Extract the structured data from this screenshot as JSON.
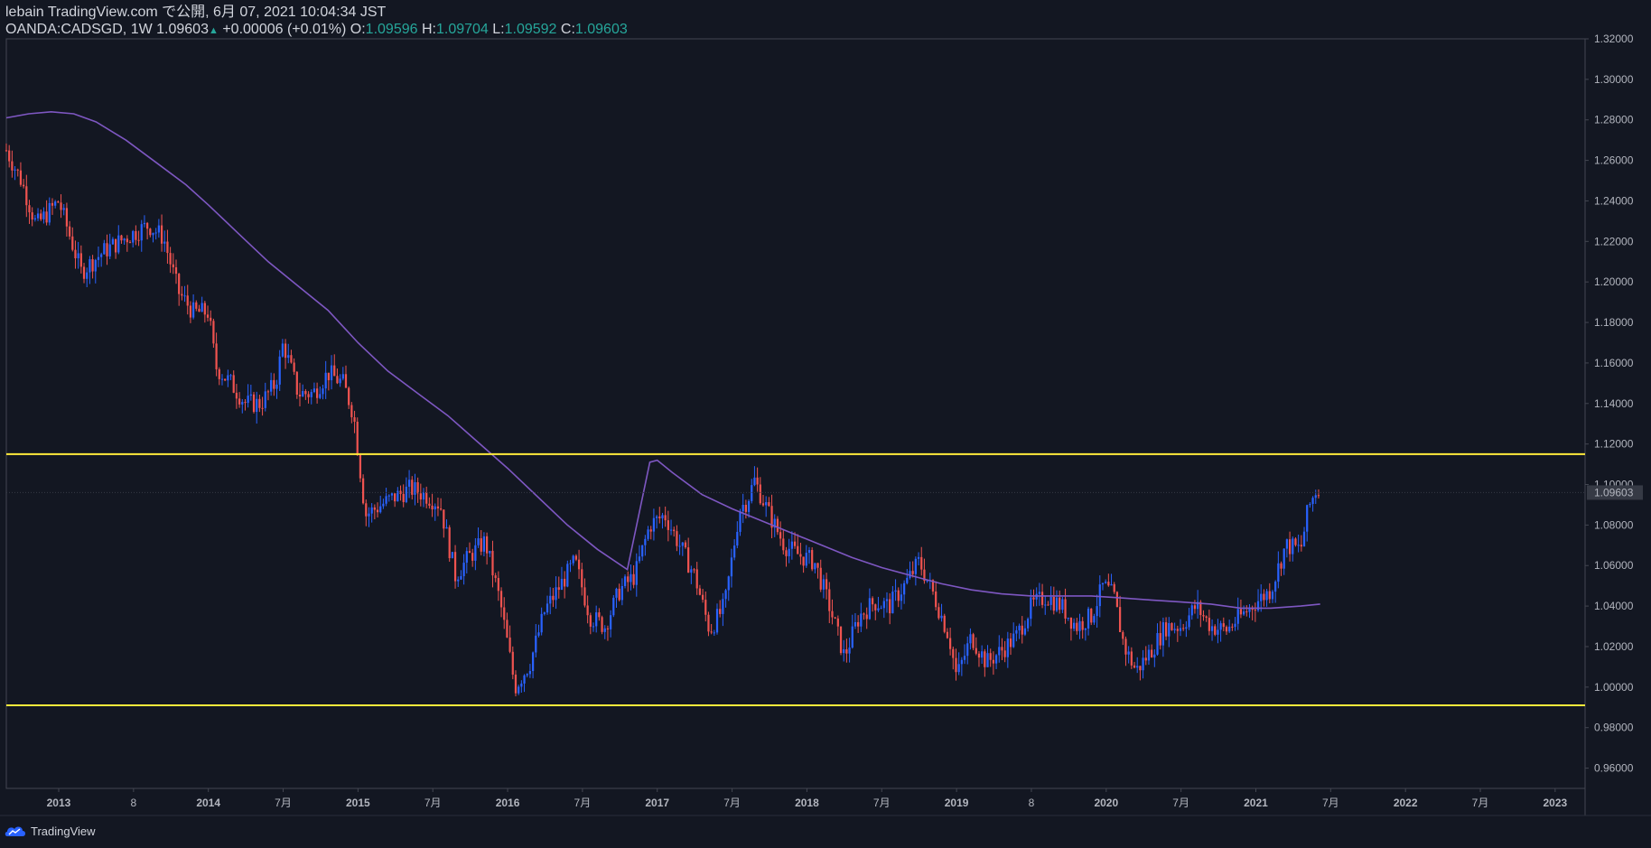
{
  "header": {
    "line1": "lebain TradingView.com で公開, 6月 07, 2021 10:04:34 JST",
    "symbol": "OANDA:CADSGD, 1W",
    "last": "1.09603",
    "change": "+0.00006 (+0.01%)",
    "o_label": "O:",
    "o_value": "1.09596",
    "h_label": "H:",
    "h_value": "1.09704",
    "l_label": "L:",
    "l_value": "1.09592",
    "c_label": "C:",
    "c_value": "1.09603"
  },
  "footer": {
    "brand": "TradingView",
    "logo_icon": "tradingview-cloud-icon"
  },
  "colors": {
    "background": "#131722",
    "up": "#2962ff",
    "down": "#ef5350",
    "ma": "#7e57c2",
    "level": "#ffeb3b",
    "axis": "#b2b5be"
  },
  "chart_data": {
    "type": "candlestick",
    "symbol": "OANDA:CADSGD",
    "interval": "1W",
    "ylim": [
      0.95,
      1.32
    ],
    "y_ticks": [
      "1.32000",
      "1.30000",
      "1.28000",
      "1.26000",
      "1.24000",
      "1.22000",
      "1.20000",
      "1.18000",
      "1.16000",
      "1.14000",
      "1.12000",
      "1.10000",
      "1.08000",
      "1.06000",
      "1.04000",
      "1.02000",
      "1.00000",
      "0.98000",
      "0.96000"
    ],
    "last_price_label": "1.09603",
    "x_ticks": [
      {
        "label": "2013",
        "t": 2013.0,
        "bold": true
      },
      {
        "label": "8",
        "t": 2013.5,
        "bold": false
      },
      {
        "label": "2014",
        "t": 2014.0,
        "bold": true
      },
      {
        "label": "7月",
        "t": 2014.5,
        "bold": false
      },
      {
        "label": "2015",
        "t": 2015.0,
        "bold": true
      },
      {
        "label": "7月",
        "t": 2015.5,
        "bold": false
      },
      {
        "label": "2016",
        "t": 2016.0,
        "bold": true
      },
      {
        "label": "7月",
        "t": 2016.5,
        "bold": false
      },
      {
        "label": "2017",
        "t": 2017.0,
        "bold": true
      },
      {
        "label": "7月",
        "t": 2017.5,
        "bold": false
      },
      {
        "label": "2018",
        "t": 2018.0,
        "bold": true
      },
      {
        "label": "7月",
        "t": 2018.5,
        "bold": false
      },
      {
        "label": "2019",
        "t": 2019.0,
        "bold": true
      },
      {
        "label": "8",
        "t": 2019.5,
        "bold": false
      },
      {
        "label": "2020",
        "t": 2020.0,
        "bold": true
      },
      {
        "label": "7月",
        "t": 2020.5,
        "bold": false
      },
      {
        "label": "2021",
        "t": 2021.0,
        "bold": true
      },
      {
        "label": "7月",
        "t": 2021.5,
        "bold": false
      },
      {
        "label": "2022",
        "t": 2022.0,
        "bold": true
      },
      {
        "label": "7月",
        "t": 2022.5,
        "bold": false
      },
      {
        "label": "2023",
        "t": 2023.0,
        "bold": true
      }
    ],
    "xlim": [
      2012.65,
      2023.2
    ],
    "horizontal_levels": [
      1.115,
      0.991
    ],
    "price_path": [
      [
        2012.65,
        1.265
      ],
      [
        2012.75,
        1.25
      ],
      [
        2012.85,
        1.228
      ],
      [
        2013.0,
        1.24
      ],
      [
        2013.15,
        1.205
      ],
      [
        2013.3,
        1.215
      ],
      [
        2013.45,
        1.222
      ],
      [
        2013.6,
        1.228
      ],
      [
        2013.7,
        1.222
      ],
      [
        2013.8,
        1.195
      ],
      [
        2013.9,
        1.185
      ],
      [
        2014.0,
        1.185
      ],
      [
        2014.05,
        1.158
      ],
      [
        2014.15,
        1.15
      ],
      [
        2014.25,
        1.14
      ],
      [
        2014.35,
        1.14
      ],
      [
        2014.45,
        1.15
      ],
      [
        2014.5,
        1.17
      ],
      [
        2014.6,
        1.145
      ],
      [
        2014.7,
        1.145
      ],
      [
        2014.8,
        1.155
      ],
      [
        2014.9,
        1.15
      ],
      [
        2014.97,
        1.135
      ],
      [
        2015.05,
        1.085
      ],
      [
        2015.2,
        1.092
      ],
      [
        2015.35,
        1.098
      ],
      [
        2015.45,
        1.095
      ],
      [
        2015.55,
        1.09
      ],
      [
        2015.65,
        1.055
      ],
      [
        2015.75,
        1.065
      ],
      [
        2015.85,
        1.072
      ],
      [
        2015.95,
        1.042
      ],
      [
        2016.05,
        1.0
      ],
      [
        2016.15,
        1.012
      ],
      [
        2016.25,
        1.038
      ],
      [
        2016.35,
        1.05
      ],
      [
        2016.45,
        1.062
      ],
      [
        2016.55,
        1.035
      ],
      [
        2016.65,
        1.03
      ],
      [
        2016.75,
        1.048
      ],
      [
        2016.85,
        1.055
      ],
      [
        2016.95,
        1.08
      ],
      [
        2017.05,
        1.085
      ],
      [
        2017.15,
        1.07
      ],
      [
        2017.25,
        1.055
      ],
      [
        2017.35,
        1.028
      ],
      [
        2017.45,
        1.04
      ],
      [
        2017.55,
        1.088
      ],
      [
        2017.6,
        1.092
      ],
      [
        2017.65,
        1.102
      ],
      [
        2017.75,
        1.085
      ],
      [
        2017.85,
        1.07
      ],
      [
        2017.95,
        1.065
      ],
      [
        2018.05,
        1.062
      ],
      [
        2018.15,
        1.04
      ],
      [
        2018.25,
        1.015
      ],
      [
        2018.35,
        1.035
      ],
      [
        2018.45,
        1.042
      ],
      [
        2018.55,
        1.04
      ],
      [
        2018.65,
        1.05
      ],
      [
        2018.75,
        1.062
      ],
      [
        2018.85,
        1.045
      ],
      [
        2018.95,
        1.025
      ],
      [
        2019.0,
        1.005
      ],
      [
        2019.1,
        1.025
      ],
      [
        2019.2,
        1.012
      ],
      [
        2019.3,
        1.018
      ],
      [
        2019.4,
        1.025
      ],
      [
        2019.5,
        1.04
      ],
      [
        2019.6,
        1.045
      ],
      [
        2019.7,
        1.04
      ],
      [
        2019.8,
        1.03
      ],
      [
        2019.9,
        1.035
      ],
      [
        2019.98,
        1.05
      ],
      [
        2020.05,
        1.045
      ],
      [
        2020.12,
        1.02
      ],
      [
        2020.2,
        1.008
      ],
      [
        2020.3,
        1.018
      ],
      [
        2020.4,
        1.03
      ],
      [
        2020.5,
        1.03
      ],
      [
        2020.6,
        1.04
      ],
      [
        2020.7,
        1.03
      ],
      [
        2020.8,
        1.028
      ],
      [
        2020.9,
        1.035
      ],
      [
        2021.0,
        1.042
      ],
      [
        2021.1,
        1.048
      ],
      [
        2021.2,
        1.07
      ],
      [
        2021.3,
        1.068
      ],
      [
        2021.35,
        1.088
      ],
      [
        2021.4,
        1.097
      ],
      [
        2021.43,
        1.09603
      ]
    ],
    "moving_average": [
      [
        2012.65,
        1.281
      ],
      [
        2012.8,
        1.283
      ],
      [
        2012.95,
        1.284
      ],
      [
        2013.1,
        1.283
      ],
      [
        2013.25,
        1.279
      ],
      [
        2013.45,
        1.27
      ],
      [
        2013.65,
        1.259
      ],
      [
        2013.85,
        1.248
      ],
      [
        2014.0,
        1.238
      ],
      [
        2014.2,
        1.224
      ],
      [
        2014.4,
        1.21
      ],
      [
        2014.6,
        1.198
      ],
      [
        2014.8,
        1.186
      ],
      [
        2015.0,
        1.17
      ],
      [
        2015.2,
        1.156
      ],
      [
        2015.4,
        1.145
      ],
      [
        2015.6,
        1.134
      ],
      [
        2015.8,
        1.121
      ],
      [
        2016.0,
        1.108
      ],
      [
        2016.2,
        1.094
      ],
      [
        2016.4,
        1.08
      ],
      [
        2016.6,
        1.068
      ],
      [
        2016.8,
        1.058
      ],
      [
        2016.95,
        1.111
      ],
      [
        2017.0,
        1.112
      ],
      [
        2017.1,
        1.106
      ],
      [
        2017.3,
        1.095
      ],
      [
        2017.5,
        1.088
      ],
      [
        2017.7,
        1.082
      ],
      [
        2017.9,
        1.076
      ],
      [
        2018.1,
        1.07
      ],
      [
        2018.3,
        1.064
      ],
      [
        2018.5,
        1.059
      ],
      [
        2018.7,
        1.055
      ],
      [
        2018.9,
        1.051
      ],
      [
        2019.1,
        1.048
      ],
      [
        2019.3,
        1.046
      ],
      [
        2019.5,
        1.045
      ],
      [
        2019.7,
        1.045
      ],
      [
        2019.9,
        1.045
      ],
      [
        2020.1,
        1.044
      ],
      [
        2020.3,
        1.043
      ],
      [
        2020.5,
        1.042
      ],
      [
        2020.7,
        1.041
      ],
      [
        2020.9,
        1.039
      ],
      [
        2021.1,
        1.039
      ],
      [
        2021.3,
        1.04
      ],
      [
        2021.43,
        1.041
      ]
    ]
  }
}
